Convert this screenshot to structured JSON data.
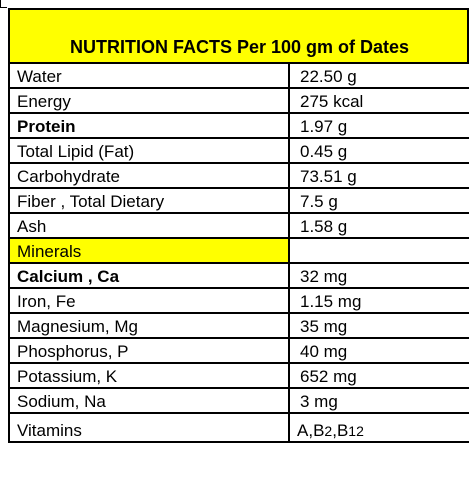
{
  "title": "NUTRITION FACTS Per 100 gm of Dates",
  "rows": [
    {
      "name": "Water",
      "value": "22.50 g"
    },
    {
      "name": "Energy",
      "value": "275 kcal"
    },
    {
      "name": "Protein",
      "value": "1.97 g"
    },
    {
      "name": "Total Lipid (Fat)",
      "value": "0.45 g"
    },
    {
      "name": "Carbohydrate",
      "value": "73.51 g"
    },
    {
      "name": "Fiber , Total Dietary",
      "value": "7.5 g"
    },
    {
      "name": "Ash",
      "value": "1.58 g"
    },
    {
      "name": "Minerals",
      "value": ""
    },
    {
      "name": "Calcium , Ca",
      "value": "32 mg"
    },
    {
      "name": "Iron, Fe",
      "value": "1.15 mg"
    },
    {
      "name": "Magnesium, Mg",
      "value": "35 mg"
    },
    {
      "name": "Phosphorus, P",
      "value": "40 mg"
    },
    {
      "name": "Potassium, K",
      "value": "652 mg"
    },
    {
      "name": "Sodium, Na",
      "value": "3 mg"
    },
    {
      "name": "Vitamins",
      "value": ""
    }
  ],
  "vitamins": {
    "a": "A,",
    "b2_letter": "B",
    "b2_sub": "2",
    "comma": ",",
    "b12_letter": "B",
    "b12_sub": "12"
  },
  "colors": {
    "header_fill": "#ffff00",
    "highlight_text": "#ff0000",
    "border": "#000000"
  }
}
